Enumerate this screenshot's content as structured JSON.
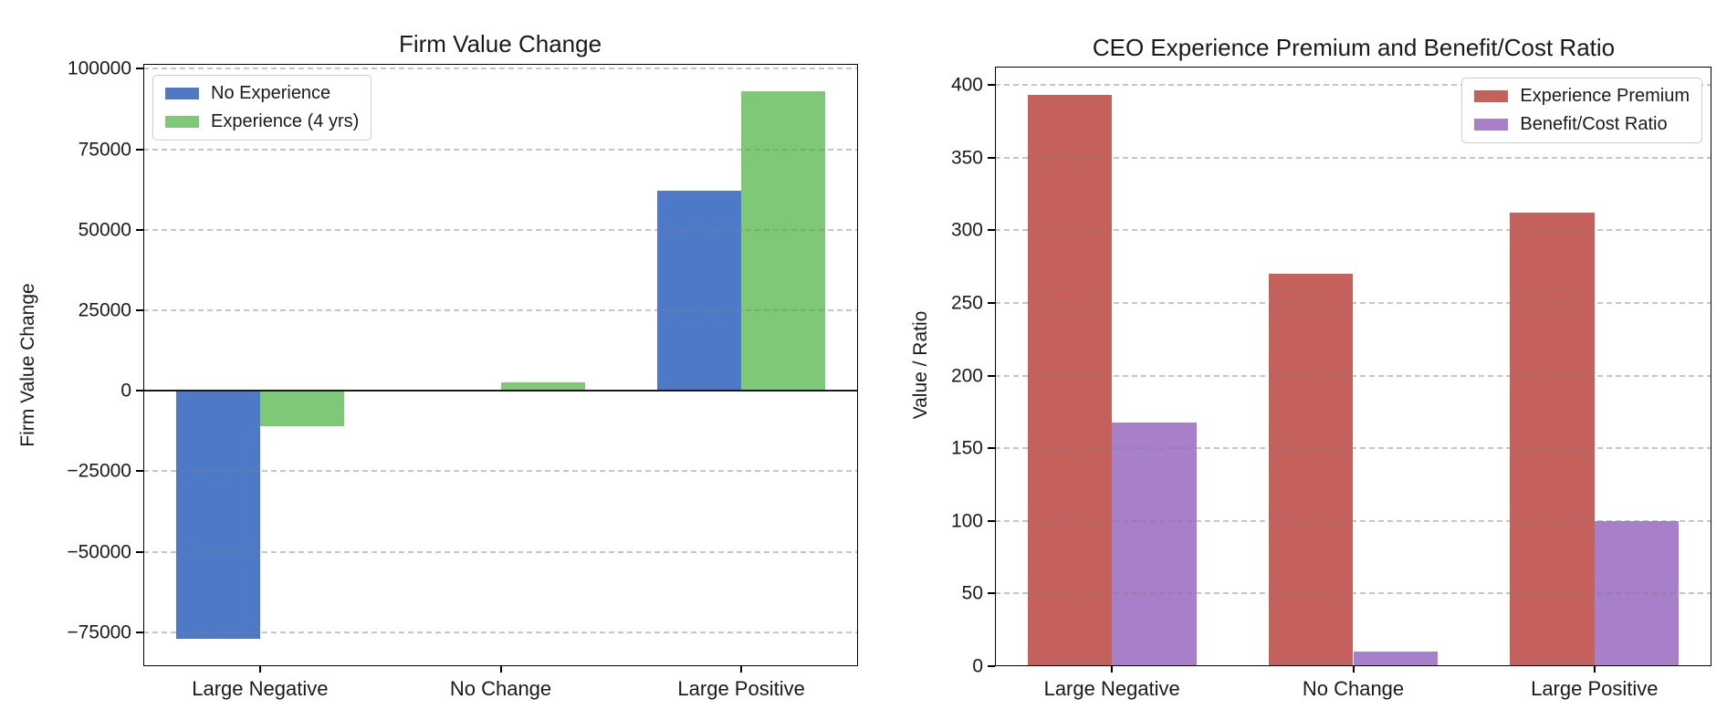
{
  "figure": {
    "background": "#ffffff"
  },
  "colors": {
    "grid": "#cccccc",
    "spine": "#000000",
    "text": "#1a1a1a",
    "zero_line": "#1a1a1a",
    "legend_border": "#cccccc",
    "blue": "#4d79c7",
    "green": "#7ec878",
    "red": "#c5615d",
    "purple": "#a87fc9"
  },
  "chart_data": [
    {
      "id": "firm_value_change",
      "type": "bar",
      "title": "Firm Value Change",
      "xlabel": "",
      "ylabel": "Firm Value Change",
      "categories": [
        "Large Negative",
        "No Change",
        "Large Positive"
      ],
      "series": [
        {
          "name": "No Experience",
          "color": "#4d79c7",
          "values": [
            -77000,
            0,
            62000
          ]
        },
        {
          "name": "Experience (4 yrs)",
          "color": "#7ec878",
          "values": [
            -11000,
            2500,
            93000
          ]
        }
      ],
      "yticks": [
        100000,
        75000,
        50000,
        25000,
        0,
        -25000,
        -50000,
        -75000
      ],
      "ytick_labels": [
        "100000",
        "75000",
        "50000",
        "25000",
        "0",
        "−25000",
        "−50000",
        "−75000"
      ],
      "ylim": [
        -85500,
        101500
      ],
      "grid": "horizontal-dashed",
      "zero_line": true,
      "legend_position": "upper-left",
      "bar_width": 0.35
    },
    {
      "id": "premium_benefit_cost",
      "type": "bar",
      "title": "CEO Experience Premium and Benefit/Cost Ratio",
      "xlabel": "",
      "ylabel": "Value / Ratio",
      "categories": [
        "Large Negative",
        "No Change",
        "Large Positive"
      ],
      "series": [
        {
          "name": "Experience Premium",
          "color": "#c5615d",
          "values": [
            393,
            270,
            312
          ]
        },
        {
          "name": "Benefit/Cost Ratio",
          "color": "#a87fc9",
          "values": [
            168,
            10,
            100
          ]
        }
      ],
      "yticks": [
        400,
        350,
        300,
        250,
        200,
        150,
        100,
        50,
        0
      ],
      "ytick_labels": [
        "400",
        "350",
        "300",
        "250",
        "200",
        "150",
        "100",
        "50",
        "0"
      ],
      "ylim": [
        0,
        412.65
      ],
      "grid": "horizontal-dashed",
      "zero_line": false,
      "legend_position": "upper-right",
      "bar_width": 0.35
    }
  ]
}
